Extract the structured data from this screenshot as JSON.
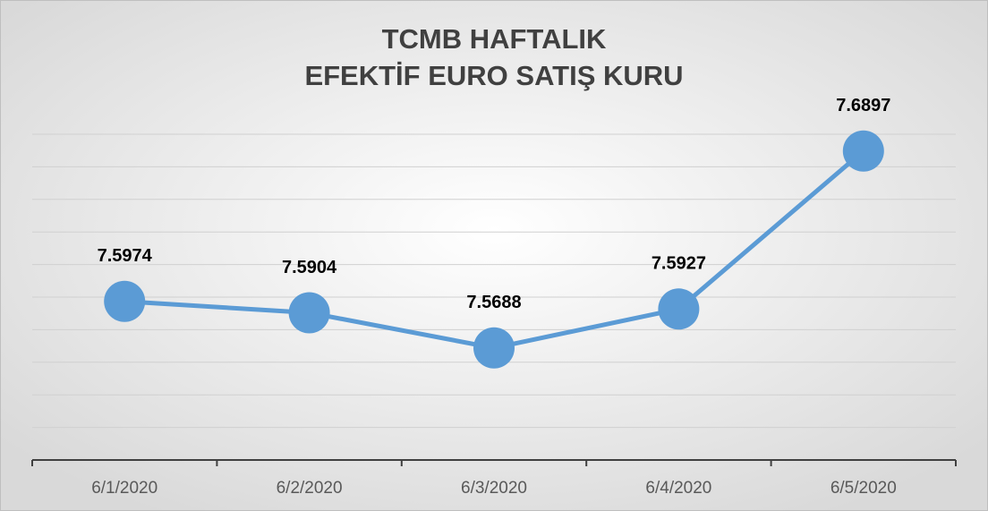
{
  "chart_data": {
    "type": "line",
    "title": [
      "TCMB HAFTALIK",
      "EFEKTİF EURO SATIŞ KURU"
    ],
    "categories": [
      "6/1/2020",
      "6/2/2020",
      "6/3/2020",
      "6/4/2020",
      "6/5/2020"
    ],
    "series": [
      {
        "name": "EFEKTİF EURO SATIŞ KURU",
        "color": "#5b9bd5",
        "values": [
          7.5974,
          7.5904,
          7.5688,
          7.5927,
          7.6897
        ]
      }
    ],
    "ylim": [
      7.5,
      7.7
    ],
    "yticks": [
      7.5,
      7.52,
      7.54,
      7.56,
      7.58,
      7.6,
      7.62,
      7.64,
      7.66,
      7.68,
      7.7
    ],
    "grid": true
  }
}
